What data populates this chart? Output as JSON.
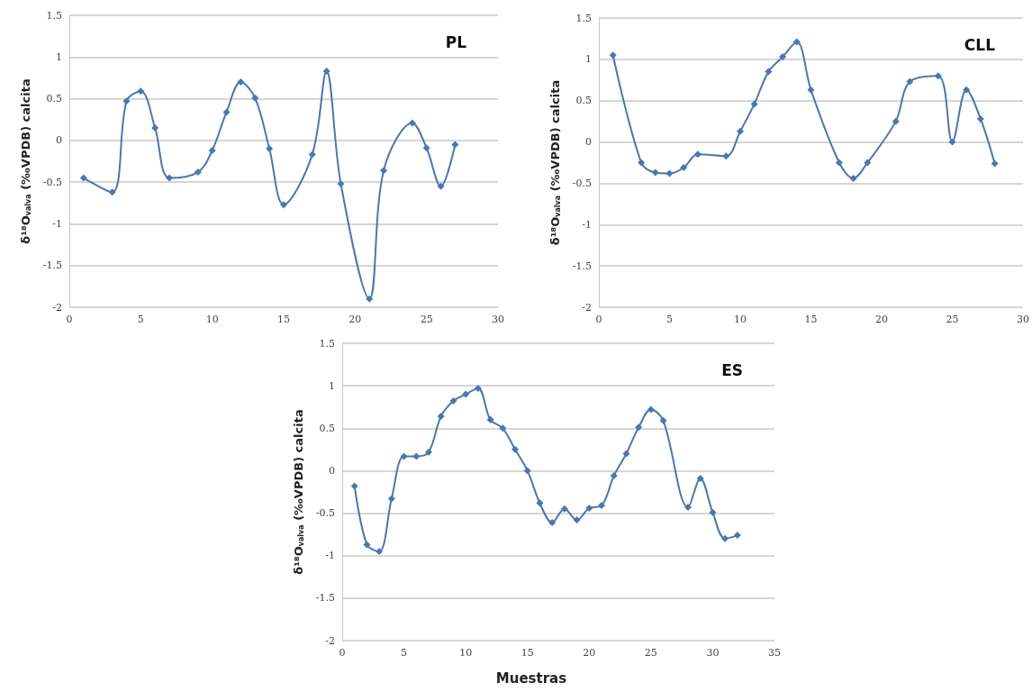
{
  "chart_data": [
    {
      "type": "line",
      "title": "PL",
      "ylabel": "δ¹⁸O$_{valva}$ (‰VPDB) calcita",
      "marker": "diamond",
      "line_style": "solid",
      "grid": "y",
      "xlim": [
        0,
        30
      ],
      "xticks": [
        0,
        5,
        10,
        15,
        20,
        25,
        30
      ],
      "ylim": [
        -2,
        1.5
      ],
      "yticks": [
        -2,
        -1.5,
        -1,
        -0.5,
        0,
        0.5,
        1,
        1.5
      ],
      "series": [
        {
          "color": "#4a78ad",
          "x": [
            1,
            3,
            4,
            5,
            6,
            7,
            9,
            10,
            11,
            12,
            13,
            14,
            15,
            17,
            18,
            19,
            21,
            22,
            24,
            25,
            26,
            27
          ],
          "values": [
            -0.45,
            -0.62,
            0.47,
            0.59,
            0.15,
            -0.45,
            -0.38,
            -0.12,
            0.34,
            0.7,
            0.51,
            -0.1,
            -0.77,
            -0.17,
            0.83,
            -0.52,
            -1.9,
            -0.36,
            0.21,
            -0.09,
            -0.55,
            -0.05
          ]
        }
      ]
    },
    {
      "type": "line",
      "title": "CLL",
      "ylabel": "δ¹⁸O$_{valva}$ (‰VPDB) calcita",
      "marker": "diamond",
      "line_style": "solid",
      "grid": "y",
      "xlim": [
        0,
        30
      ],
      "xticks": [
        0,
        5,
        10,
        15,
        20,
        25,
        30
      ],
      "ylim": [
        -2,
        1.5
      ],
      "yticks": [
        -2,
        -1.5,
        -1,
        -0.5,
        0,
        0.5,
        1,
        1.5
      ],
      "series": [
        {
          "color": "#4a78ad",
          "x": [
            1,
            3,
            4,
            5,
            6,
            7,
            9,
            10,
            11,
            12,
            13,
            14,
            15,
            17,
            18,
            19,
            21,
            22,
            24,
            25,
            26,
            27,
            28
          ],
          "values": [
            1.05,
            -0.25,
            -0.37,
            -0.38,
            -0.31,
            -0.15,
            -0.17,
            0.13,
            0.46,
            0.85,
            1.03,
            1.21,
            0.63,
            -0.25,
            -0.44,
            -0.25,
            0.25,
            0.73,
            0.8,
            0.0,
            0.63,
            0.28,
            -0.26
          ]
        }
      ]
    },
    {
      "type": "line",
      "title": "ES",
      "ylabel": "δ¹⁸O$_{valva}$ (‰VPDB) calcita",
      "xlabel": "Muestras",
      "marker": "diamond",
      "line_style": "solid",
      "grid": "y",
      "xlim": [
        0,
        35
      ],
      "xticks": [
        0,
        5,
        10,
        15,
        20,
        25,
        30,
        35
      ],
      "ylim": [
        -2,
        1.5
      ],
      "yticks": [
        -2,
        -1.5,
        -1,
        -0.5,
        0,
        0.5,
        1,
        1.5
      ],
      "series": [
        {
          "color": "#4a78ad",
          "x": [
            1,
            2,
            3,
            4,
            5,
            6,
            7,
            8,
            9,
            10,
            11,
            12,
            13,
            14,
            15,
            16,
            17,
            18,
            19,
            20,
            21,
            22,
            23,
            24,
            25,
            26,
            28,
            29,
            30,
            31,
            32
          ],
          "values": [
            -0.18,
            -0.87,
            -0.95,
            -0.33,
            0.17,
            0.17,
            0.22,
            0.64,
            0.82,
            0.9,
            0.97,
            0.6,
            0.5,
            0.25,
            0.0,
            -0.38,
            -0.61,
            -0.45,
            -0.58,
            -0.44,
            -0.41,
            -0.06,
            0.2,
            0.51,
            0.72,
            0.59,
            -0.43,
            -0.09,
            -0.49,
            -0.8,
            -0.76
          ]
        }
      ]
    }
  ]
}
